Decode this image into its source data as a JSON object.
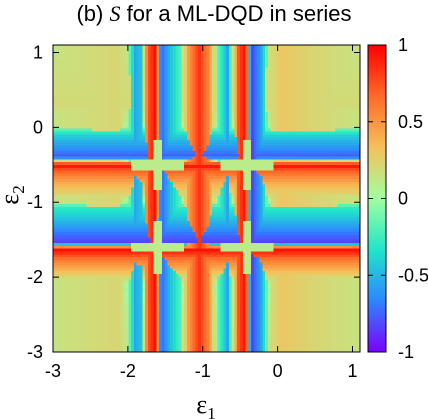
{
  "chart_data": {
    "type": "heatmap",
    "title": {
      "prefix": "(b)",
      "symbol": "S",
      "rest": "for a ML-DQD in series"
    },
    "xlabel": {
      "base": "ε",
      "sub": "1"
    },
    "ylabel": {
      "base": "ε",
      "sub": "2"
    },
    "xlim": [
      -3,
      1.1
    ],
    "ylim": [
      -3,
      1.1
    ],
    "x_ticks": [
      {
        "value": -3,
        "label": "-3"
      },
      {
        "value": -2,
        "label": "-2"
      },
      {
        "value": -1,
        "label": "-1"
      },
      {
        "value": 0,
        "label": "0"
      },
      {
        "value": 1,
        "label": "1"
      }
    ],
    "y_ticks": [
      {
        "value": -3,
        "label": "-3"
      },
      {
        "value": -2,
        "label": "-2"
      },
      {
        "value": -1,
        "label": "-1"
      },
      {
        "value": 0,
        "label": "0"
      },
      {
        "value": 1,
        "label": "1"
      }
    ],
    "colorbar": {
      "range": [
        -1,
        1
      ],
      "ticks": [
        {
          "value": 1,
          "label": "1"
        },
        {
          "value": 0.5,
          "label": "0.5"
        },
        {
          "value": 0,
          "label": "0"
        },
        {
          "value": -0.5,
          "label": "-0.5"
        },
        {
          "value": -1,
          "label": "-1"
        }
      ],
      "colormap": [
        "#7d00ff",
        "#2d86ff",
        "#20e6c8",
        "#a0ffa0",
        "#f5c05a",
        "#ff6a28",
        "#ff0000"
      ]
    },
    "profile_x": [
      {
        "x": -3.0,
        "v": 0.15
      },
      {
        "x": -2.1,
        "v": 0.22
      },
      {
        "x": -2.0,
        "v": -0.05
      },
      {
        "x": -1.9,
        "v": -0.55
      },
      {
        "x": -1.82,
        "v": -0.45
      },
      {
        "x": -1.74,
        "v": 0.7
      },
      {
        "x": -1.62,
        "v": 1.0
      },
      {
        "x": -1.56,
        "v": -0.8
      },
      {
        "x": -1.45,
        "v": -0.5
      },
      {
        "x": -1.3,
        "v": -0.2
      },
      {
        "x": -1.2,
        "v": 0.45
      },
      {
        "x": -1.05,
        "v": 0.85
      },
      {
        "x": -0.92,
        "v": 0.55
      },
      {
        "x": -0.8,
        "v": -0.15
      },
      {
        "x": -0.67,
        "v": -0.55
      },
      {
        "x": -0.52,
        "v": 0.75
      },
      {
        "x": -0.42,
        "v": 1.0
      },
      {
        "x": -0.36,
        "v": -0.9
      },
      {
        "x": -0.22,
        "v": -0.55
      },
      {
        "x": -0.08,
        "v": 0.2
      },
      {
        "x": 0.05,
        "v": 0.3
      },
      {
        "x": 0.5,
        "v": 0.22
      },
      {
        "x": 1.1,
        "v": 0.15
      }
    ],
    "profile_y": [
      {
        "y": 1.1,
        "v": 0.15
      },
      {
        "y": 0.3,
        "v": 0.2
      },
      {
        "y": 0.05,
        "v": 0.1
      },
      {
        "y": -0.1,
        "v": -0.4
      },
      {
        "y": -0.3,
        "v": -0.65
      },
      {
        "y": -0.4,
        "v": -0.8
      },
      {
        "y": -0.5,
        "v": 1.0
      },
      {
        "y": -0.58,
        "v": 0.7
      },
      {
        "y": -0.75,
        "v": 0.4
      },
      {
        "y": -0.92,
        "v": 0.2
      },
      {
        "y": -1.08,
        "v": -0.3
      },
      {
        "y": -1.3,
        "v": -0.55
      },
      {
        "y": -1.45,
        "v": -0.75
      },
      {
        "y": -1.55,
        "v": -0.85
      },
      {
        "y": -1.62,
        "v": 1.0
      },
      {
        "y": -1.75,
        "v": 0.65
      },
      {
        "y": -1.95,
        "v": 0.3
      },
      {
        "y": -2.15,
        "v": -0.05
      },
      {
        "y": -2.4,
        "v": 0.1
      },
      {
        "y": -3.0,
        "v": 0.15
      }
    ],
    "interaction_gaps": {
      "rows": [
        -0.5,
        -1.6
      ],
      "cols": [
        -1.6,
        -0.4
      ],
      "value": 0.1
    }
  }
}
